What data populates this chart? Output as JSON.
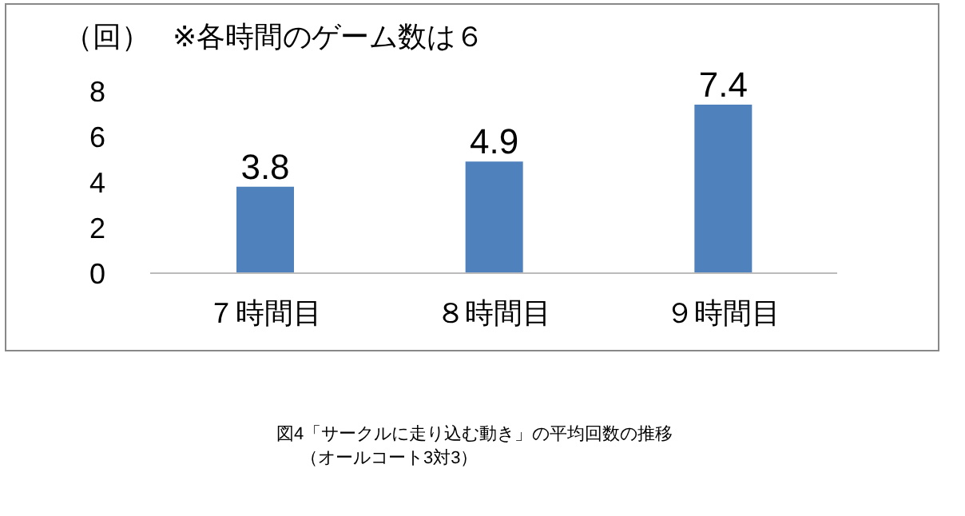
{
  "chart_data": {
    "type": "bar",
    "title": "図4「サークルに走り込む動き」の平均回数の推移",
    "subtitle": "（オールコート3対3）",
    "ylabel": "（回）",
    "annotations": [
      "※各時間のゲーム数は６"
    ],
    "categories": [
      "７時間目",
      "８時間目",
      "９時間目"
    ],
    "values": [
      3.8,
      4.9,
      7.4
    ],
    "color": "#4f81bd",
    "ylim": [
      0,
      8
    ],
    "yticks": [
      0,
      2,
      4,
      6,
      8
    ],
    "grid": false,
    "data_labels": true
  }
}
